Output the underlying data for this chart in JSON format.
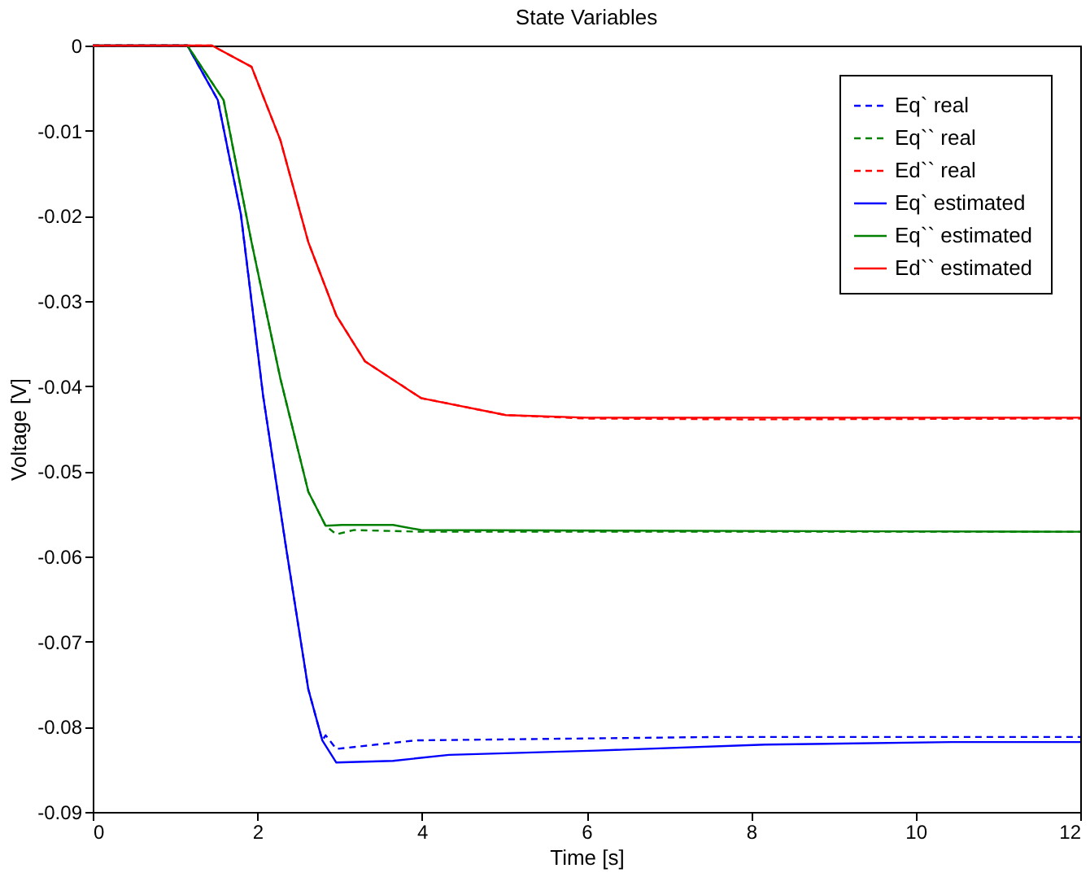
{
  "chart_data": {
    "type": "line",
    "title": "State Variables",
    "xlabel": "Time [s]",
    "ylabel": "Voltage [V]",
    "xlim": [
      0,
      12
    ],
    "xticks": [
      0,
      2,
      4,
      6,
      8,
      10,
      12
    ],
    "ylim": [
      -0.09,
      0
    ],
    "yticks": [
      -0.09,
      -0.08,
      -0.07,
      -0.06,
      -0.05,
      -0.04,
      -0.03,
      -0.02,
      -0.01,
      0
    ],
    "grid": false,
    "legend": "top right",
    "marker": "none",
    "series": [
      {
        "name": "Eq`  real",
        "color": "#0000ff",
        "line_style": "dashed",
        "x": [
          0,
          1.15,
          1.52,
          1.8,
          2.07,
          2.35,
          2.62,
          2.79,
          2.83,
          2.96,
          3.44,
          3.92,
          7.56,
          12
        ],
        "values": [
          0,
          0,
          -0.0064,
          -0.0198,
          -0.0411,
          -0.059,
          -0.0756,
          -0.0816,
          -0.081,
          -0.0826,
          -0.0821,
          -0.0816,
          -0.0812,
          -0.0812
        ]
      },
      {
        "name": "Eq`` real",
        "color": "#008000",
        "line_style": "dashed",
        "x": [
          0,
          1.15,
          1.59,
          1.93,
          2.28,
          2.62,
          2.83,
          2.96,
          3.17,
          4,
          12
        ],
        "values": [
          0,
          0,
          -0.0064,
          -0.0231,
          -0.0391,
          -0.0524,
          -0.0564,
          -0.0574,
          -0.0569,
          -0.0571,
          -0.0571
        ]
      },
      {
        "name": "Ed`` real",
        "color": "#ff0000",
        "line_style": "dashed",
        "x": [
          0,
          1.45,
          1.93,
          2.28,
          2.62,
          2.96,
          3.31,
          3.99,
          5.02,
          6,
          8,
          12
        ],
        "values": [
          0,
          0,
          -0.0025,
          -0.0111,
          -0.0231,
          -0.0317,
          -0.0371,
          -0.0414,
          -0.0434,
          -0.0438,
          -0.0439,
          -0.0438
        ]
      },
      {
        "name": "Eq`   estimated",
        "color": "#0000ff",
        "line_style": "solid",
        "x": [
          0,
          1.15,
          1.52,
          1.8,
          2.07,
          2.35,
          2.62,
          2.79,
          2.96,
          3.65,
          4.33,
          6.12,
          8.17,
          10.44,
          12
        ],
        "values": [
          0,
          0,
          -0.0064,
          -0.0198,
          -0.0411,
          -0.059,
          -0.0756,
          -0.0816,
          -0.0842,
          -0.084,
          -0.0833,
          -0.0828,
          -0.0821,
          -0.0818,
          -0.0818
        ]
      },
      {
        "name": "Eq`` estimated",
        "color": "#008000",
        "line_style": "solid",
        "x": [
          0,
          1.15,
          1.59,
          1.93,
          2.28,
          2.62,
          2.83,
          3.03,
          3.65,
          3.99,
          12
        ],
        "values": [
          0,
          0,
          -0.0064,
          -0.0231,
          -0.0391,
          -0.0524,
          -0.0564,
          -0.0563,
          -0.0563,
          -0.0569,
          -0.0571
        ]
      },
      {
        "name": "Ed`` estimated",
        "color": "#ff0000",
        "line_style": "solid",
        "x": [
          0,
          1.45,
          1.93,
          2.28,
          2.62,
          2.96,
          3.31,
          3.99,
          5.02,
          6,
          8,
          12
        ],
        "values": [
          0,
          0,
          -0.0025,
          -0.0111,
          -0.0231,
          -0.0317,
          -0.0371,
          -0.0414,
          -0.0434,
          -0.0437,
          -0.0437,
          -0.0437
        ]
      }
    ]
  }
}
